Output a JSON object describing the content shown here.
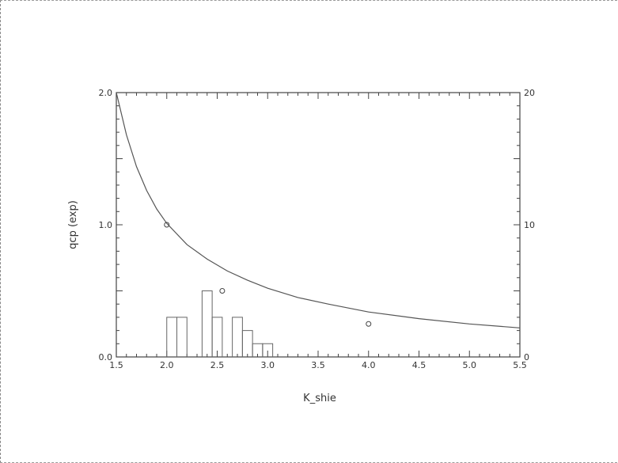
{
  "chart_data": {
    "type": "bar",
    "xlabel": "K_shie",
    "ylabel": "qcp (exp)",
    "y2label": "",
    "xlim": [
      1.5,
      5.5
    ],
    "ylim": [
      0.0,
      2.0
    ],
    "y2lim": [
      0,
      20
    ],
    "x_ticks": [
      "1.5",
      "2.0",
      "2.5",
      "3.0",
      "3.5",
      "4.0",
      "4.5",
      "5.0",
      "5.5"
    ],
    "y_ticks": [
      "0.0",
      "1.0",
      "2.0"
    ],
    "y2_ticks": [
      "0",
      "10",
      "20"
    ],
    "histogram": {
      "axis": "right",
      "bin_width": 0.1,
      "bins": [
        {
          "x": 2.0,
          "count": 3
        },
        {
          "x": 2.1,
          "count": 3
        },
        {
          "x": 2.35,
          "count": 5
        },
        {
          "x": 2.45,
          "count": 3
        },
        {
          "x": 2.65,
          "count": 3
        },
        {
          "x": 2.75,
          "count": 2
        },
        {
          "x": 2.85,
          "count": 1
        },
        {
          "x": 2.95,
          "count": 1
        }
      ]
    },
    "points": [
      {
        "x": 2.0,
        "y": 1.0
      },
      {
        "x": 2.55,
        "y": 0.5
      },
      {
        "x": 4.0,
        "y": 0.25
      }
    ],
    "curve": {
      "x": [
        1.5,
        1.6,
        1.7,
        1.8,
        1.9,
        2.0,
        2.2,
        2.4,
        2.6,
        2.8,
        3.0,
        3.3,
        3.6,
        4.0,
        4.5,
        5.0,
        5.5
      ],
      "y": [
        2.0,
        1.68,
        1.44,
        1.26,
        1.12,
        1.01,
        0.85,
        0.74,
        0.65,
        0.58,
        0.52,
        0.45,
        0.4,
        0.34,
        0.29,
        0.25,
        0.22
      ]
    },
    "grid": false,
    "legend": "none"
  }
}
